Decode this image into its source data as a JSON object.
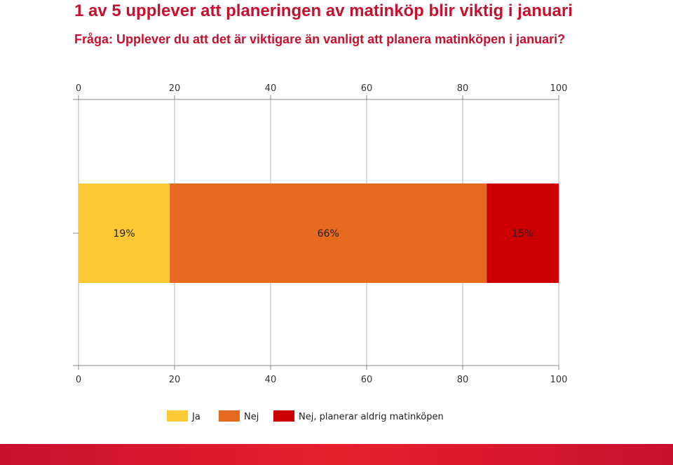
{
  "header": {
    "title": "1 av 5 upplever att planeringen av matinköp blir viktig i januari",
    "subtitle": "Fråga: Upplever du att det är viktigare än vanligt att planera matinköpen i januari?"
  },
  "chart_data": {
    "type": "bar",
    "orientation": "horizontal-stacked",
    "title": "",
    "xlabel": "",
    "ylabel": "",
    "xlim": [
      0,
      100
    ],
    "ticks": [
      0,
      20,
      40,
      60,
      80,
      100
    ],
    "tick_labels": [
      "0",
      "20",
      "40",
      "60",
      "80",
      "100"
    ],
    "grid": true,
    "legend_position": "bottom",
    "series": [
      {
        "name": "Ja",
        "values": [
          19
        ],
        "label": "19%",
        "color": "#fcc934"
      },
      {
        "name": "Nej",
        "values": [
          66
        ],
        "label": "66%",
        "color": "#e5691e"
      },
      {
        "name": "Nej, planerar aldrig matinköpen",
        "values": [
          15
        ],
        "label": "15%",
        "color": "#cc0000"
      }
    ]
  },
  "colors": {
    "brand_red": "#c8102e",
    "grid": "#b0b0b0",
    "axis": "#888888"
  }
}
